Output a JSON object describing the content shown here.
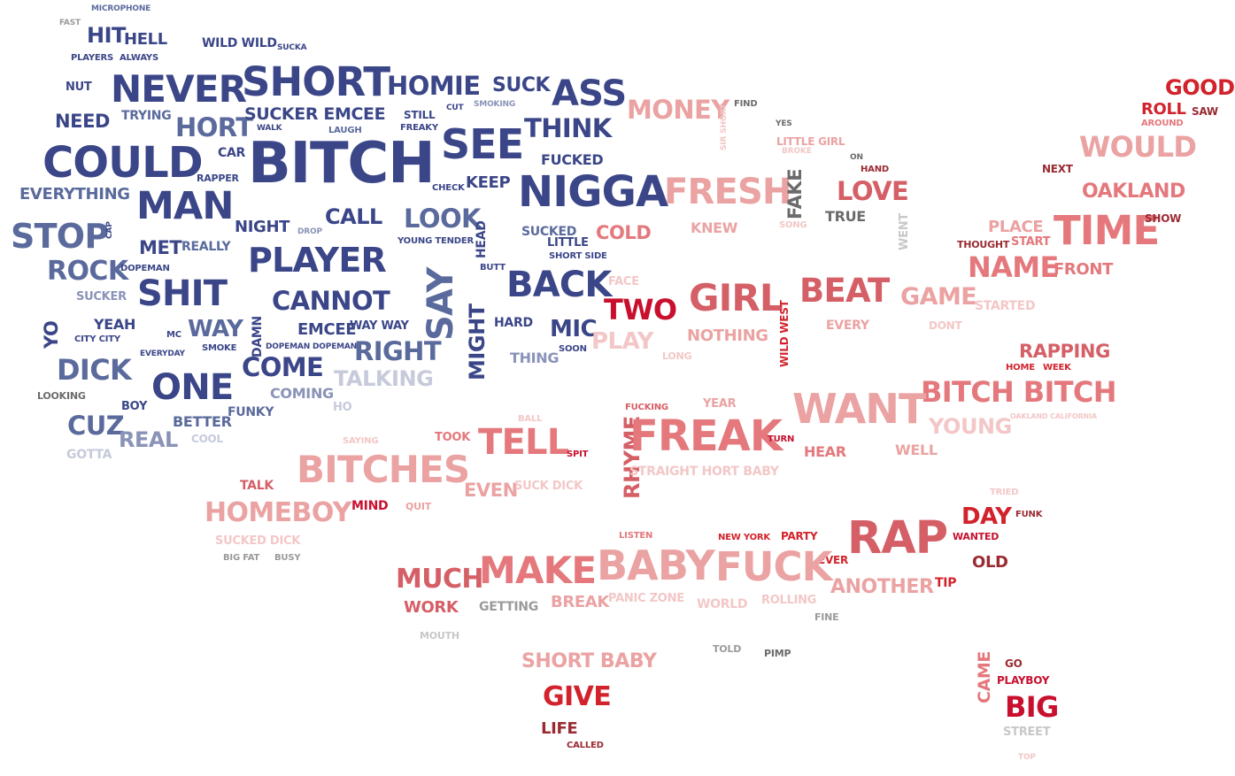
{
  "palette": {
    "navy": "#3b4688",
    "slate": "#5a6a9c",
    "blue_gray": "#8a93b8",
    "pale_blue": "#c6cadb",
    "gray": "#9a9a9a",
    "light_gray": "#c8c8c8",
    "dark_gray": "#6b6b6b",
    "pale_pink": "#f3c7c7",
    "pink": "#eba2a2",
    "salmon": "#e4787c",
    "rose": "#d55f66",
    "red": "#d2232c",
    "crimson": "#c8102e",
    "maroon": "#9a2b33"
  },
  "words": [
    {
      "text": "MICROPHONE",
      "color": "slate",
      "size": 11,
      "weight": 1
    },
    {
      "text": "FAST",
      "color": "gray",
      "size": 11,
      "weight": 1
    },
    {
      "text": "HIT",
      "color": "navy",
      "size": 30,
      "weight": 3
    },
    {
      "text": "HELL",
      "color": "navy",
      "size": 22,
      "weight": 2
    },
    {
      "text": "PLAYERS",
      "color": "navy",
      "size": 13,
      "weight": 1
    },
    {
      "text": "ALWAYS",
      "color": "navy",
      "size": 13,
      "weight": 1
    },
    {
      "text": "WILD WILD",
      "color": "navy",
      "size": 18,
      "weight": 2
    },
    {
      "text": "SUCKA",
      "color": "navy",
      "size": 11,
      "weight": 1
    },
    {
      "text": "NUT",
      "color": "navy",
      "size": 16,
      "weight": 1
    },
    {
      "text": "NEVER",
      "color": "navy",
      "size": 52,
      "weight": 5
    },
    {
      "text": "SHORT",
      "color": "navy",
      "size": 56,
      "weight": 5
    },
    {
      "text": "HOMIE",
      "color": "navy",
      "size": 36,
      "weight": 3
    },
    {
      "text": "SUCK",
      "color": "navy",
      "size": 28,
      "weight": 3
    },
    {
      "text": "ASS",
      "color": "navy",
      "size": 50,
      "weight": 5
    },
    {
      "text": "CUT",
      "color": "navy",
      "size": 11,
      "weight": 1
    },
    {
      "text": "SMOKING",
      "color": "blue_gray",
      "size": 11,
      "weight": 1
    },
    {
      "text": "NEED",
      "color": "navy",
      "size": 26,
      "weight": 2
    },
    {
      "text": "TRYING",
      "color": "slate",
      "size": 17,
      "weight": 1
    },
    {
      "text": "HORT",
      "color": "slate",
      "size": 36,
      "weight": 3
    },
    {
      "text": "SUCKER EMCEE",
      "color": "navy",
      "size": 24,
      "weight": 2
    },
    {
      "text": "WALK",
      "color": "navy",
      "size": 11,
      "weight": 1
    },
    {
      "text": "LAUGH",
      "color": "slate",
      "size": 12,
      "weight": 1
    },
    {
      "text": "STILL",
      "color": "navy",
      "size": 15,
      "weight": 1
    },
    {
      "text": "FREAKY",
      "color": "navy",
      "size": 12,
      "weight": 1
    },
    {
      "text": "THINK",
      "color": "navy",
      "size": 36,
      "weight": 3
    },
    {
      "text": "SEE",
      "color": "navy",
      "size": 58,
      "weight": 5
    },
    {
      "text": "MONEY",
      "color": "pink",
      "size": 36,
      "weight": 3
    },
    {
      "text": "FIND",
      "color": "dark_gray",
      "size": 13,
      "weight": 1
    },
    {
      "text": "SIR SHORT",
      "color": "pale_pink",
      "size": 11,
      "weight": 1
    },
    {
      "text": "GOOD",
      "color": "red",
      "size": 30,
      "weight": 3
    },
    {
      "text": "ROLL",
      "color": "red",
      "size": 22,
      "weight": 2
    },
    {
      "text": "SAW",
      "color": "maroon",
      "size": 15,
      "weight": 1
    },
    {
      "text": "AROUND",
      "color": "salmon",
      "size": 13,
      "weight": 1
    },
    {
      "text": "COULD",
      "color": "navy",
      "size": 60,
      "weight": 6
    },
    {
      "text": "CAR",
      "color": "navy",
      "size": 18,
      "weight": 1
    },
    {
      "text": "BITCH",
      "color": "navy",
      "size": 80,
      "weight": 8
    },
    {
      "text": "FUCKED",
      "color": "navy",
      "size": 20,
      "weight": 2
    },
    {
      "text": "YES",
      "color": "dark_gray",
      "size": 11,
      "weight": 1
    },
    {
      "text": "LITTLE GIRL",
      "color": "pink",
      "size": 15,
      "weight": 1
    },
    {
      "text": "BROKE",
      "color": "pale_pink",
      "size": 11,
      "weight": 1
    },
    {
      "text": "ON",
      "color": "dark_gray",
      "size": 11,
      "weight": 1
    },
    {
      "text": "HAND",
      "color": "maroon",
      "size": 12,
      "weight": 1
    },
    {
      "text": "NEXT",
      "color": "maroon",
      "size": 15,
      "weight": 1
    },
    {
      "text": "WOULD",
      "color": "pink",
      "size": 40,
      "weight": 4
    },
    {
      "text": "EVERYTHING",
      "color": "slate",
      "size": 22,
      "weight": 2
    },
    {
      "text": "RAPPER",
      "color": "navy",
      "size": 14,
      "weight": 1
    },
    {
      "text": "CHECK",
      "color": "navy",
      "size": 12,
      "weight": 1
    },
    {
      "text": "KEEP",
      "color": "navy",
      "size": 22,
      "weight": 2
    },
    {
      "text": "NIGGA",
      "color": "navy",
      "size": 60,
      "weight": 6
    },
    {
      "text": "FRESH",
      "color": "pink",
      "size": 50,
      "weight": 5
    },
    {
      "text": "FAKE",
      "color": "dark_gray",
      "size": 26,
      "weight": 2
    },
    {
      "text": "LOVE",
      "color": "rose",
      "size": 36,
      "weight": 3
    },
    {
      "text": "OAKLAND",
      "color": "salmon",
      "size": 28,
      "weight": 3
    },
    {
      "text": "MAN",
      "color": "navy",
      "size": 54,
      "weight": 5
    },
    {
      "text": "STOP",
      "color": "slate",
      "size": 48,
      "weight": 4
    },
    {
      "text": "CAP",
      "color": "navy",
      "size": 11,
      "weight": 1
    },
    {
      "text": "NIGHT",
      "color": "navy",
      "size": 22,
      "weight": 2
    },
    {
      "text": "DROP",
      "color": "blue_gray",
      "size": 11,
      "weight": 1
    },
    {
      "text": "CALL",
      "color": "navy",
      "size": 30,
      "weight": 3
    },
    {
      "text": "LOOK",
      "color": "slate",
      "size": 36,
      "weight": 3
    },
    {
      "text": "YOUNG TENDER",
      "color": "navy",
      "size": 12,
      "weight": 1
    },
    {
      "text": "HEAD",
      "color": "navy",
      "size": 18,
      "weight": 1
    },
    {
      "text": "SUCKED",
      "color": "slate",
      "size": 18,
      "weight": 1
    },
    {
      "text": "LITTLE",
      "color": "navy",
      "size": 16,
      "weight": 1
    },
    {
      "text": "SHORT SIDE",
      "color": "navy",
      "size": 12,
      "weight": 1
    },
    {
      "text": "COLD",
      "color": "salmon",
      "size": 26,
      "weight": 2
    },
    {
      "text": "KNEW",
      "color": "pink",
      "size": 20,
      "weight": 2
    },
    {
      "text": "SONG",
      "color": "pale_pink",
      "size": 13,
      "weight": 1
    },
    {
      "text": "TRUE",
      "color": "dark_gray",
      "size": 20,
      "weight": 2
    },
    {
      "text": "WENT",
      "color": "light_gray",
      "size": 16,
      "weight": 1
    },
    {
      "text": "PLACE",
      "color": "pink",
      "size": 22,
      "weight": 2
    },
    {
      "text": "THOUGHT",
      "color": "maroon",
      "size": 14,
      "weight": 1
    },
    {
      "text": "START",
      "color": "salmon",
      "size": 16,
      "weight": 1
    },
    {
      "text": "TIME",
      "color": "salmon",
      "size": 56,
      "weight": 5
    },
    {
      "text": "SHOW",
      "color": "maroon",
      "size": 15,
      "weight": 1
    },
    {
      "text": "MET",
      "color": "navy",
      "size": 26,
      "weight": 2
    },
    {
      "text": "REALLY",
      "color": "slate",
      "size": 18,
      "weight": 1
    },
    {
      "text": "PLAYER",
      "color": "navy",
      "size": 48,
      "weight": 5
    },
    {
      "text": "SAY",
      "color": "slate",
      "size": 50,
      "weight": 5
    },
    {
      "text": "ROCK",
      "color": "slate",
      "size": 38,
      "weight": 3
    },
    {
      "text": "DOPEMAN",
      "color": "navy",
      "size": 12,
      "weight": 1
    },
    {
      "text": "BUTT",
      "color": "navy",
      "size": 12,
      "weight": 1
    },
    {
      "text": "BACK",
      "color": "navy",
      "size": 50,
      "weight": 5
    },
    {
      "text": "FACE",
      "color": "pale_pink",
      "size": 16,
      "weight": 1
    },
    {
      "text": "NAME",
      "color": "salmon",
      "size": 40,
      "weight": 4
    },
    {
      "text": "FRONT",
      "color": "salmon",
      "size": 22,
      "weight": 2
    },
    {
      "text": "SUCKER",
      "color": "blue_gray",
      "size": 16,
      "weight": 1
    },
    {
      "text": "SHIT",
      "color": "navy",
      "size": 50,
      "weight": 5
    },
    {
      "text": "CANNOT",
      "color": "navy",
      "size": 36,
      "weight": 3
    },
    {
      "text": "MIGHT",
      "color": "navy",
      "size": 30,
      "weight": 3
    },
    {
      "text": "TWO",
      "color": "crimson",
      "size": 40,
      "weight": 4
    },
    {
      "text": "GIRL",
      "color": "rose",
      "size": 52,
      "weight": 5
    },
    {
      "text": "WILD WEST",
      "color": "red",
      "size": 15,
      "weight": 1
    },
    {
      "text": "BEAT",
      "color": "rose",
      "size": 46,
      "weight": 4
    },
    {
      "text": "GAME",
      "color": "pink",
      "size": 34,
      "weight": 3
    },
    {
      "text": "STARTED",
      "color": "pale_pink",
      "size": 18,
      "weight": 1
    },
    {
      "text": "YO",
      "color": "navy",
      "size": 26,
      "weight": 2
    },
    {
      "text": "YEAH",
      "color": "navy",
      "size": 20,
      "weight": 2
    },
    {
      "text": "CITY CITY",
      "color": "navy",
      "size": 12,
      "weight": 1
    },
    {
      "text": "MC",
      "color": "navy",
      "size": 12,
      "weight": 1
    },
    {
      "text": "WAY",
      "color": "slate",
      "size": 32,
      "weight": 3
    },
    {
      "text": "DAMN",
      "color": "navy",
      "size": 18,
      "weight": 1
    },
    {
      "text": "EMCEE",
      "color": "navy",
      "size": 22,
      "weight": 2
    },
    {
      "text": "WAY WAY",
      "color": "navy",
      "size": 16,
      "weight": 1
    },
    {
      "text": "HARD",
      "color": "navy",
      "size": 18,
      "weight": 1
    },
    {
      "text": "MIC",
      "color": "navy",
      "size": 32,
      "weight": 3
    },
    {
      "text": "PLAY",
      "color": "pale_pink",
      "size": 32,
      "weight": 3
    },
    {
      "text": "NOTHING",
      "color": "pink",
      "size": 22,
      "weight": 2
    },
    {
      "text": "EVERY",
      "color": "pink",
      "size": 18,
      "weight": 1
    },
    {
      "text": "DONT",
      "color": "pale_pink",
      "size": 15,
      "weight": 1
    },
    {
      "text": "RAPPING",
      "color": "rose",
      "size": 26,
      "weight": 2
    },
    {
      "text": "EVERYDAY",
      "color": "navy",
      "size": 11,
      "weight": 1
    },
    {
      "text": "SMOKE",
      "color": "navy",
      "size": 12,
      "weight": 1
    },
    {
      "text": "DOPEMAN DOPEMAN",
      "color": "navy",
      "size": 11,
      "weight": 1
    },
    {
      "text": "RIGHT",
      "color": "slate",
      "size": 36,
      "weight": 3
    },
    {
      "text": "THING",
      "color": "blue_gray",
      "size": 20,
      "weight": 2
    },
    {
      "text": "SOON",
      "color": "navy",
      "size": 12,
      "weight": 1
    },
    {
      "text": "LONG",
      "color": "pale_pink",
      "size": 14,
      "weight": 1
    },
    {
      "text": "HOME",
      "color": "red",
      "size": 13,
      "weight": 1
    },
    {
      "text": "WEEK",
      "color": "red",
      "size": 13,
      "weight": 1
    },
    {
      "text": "DICK",
      "color": "slate",
      "size": 40,
      "weight": 4
    },
    {
      "text": "COME",
      "color": "navy",
      "size": 36,
      "weight": 3
    },
    {
      "text": "TALKING",
      "color": "pale_blue",
      "size": 30,
      "weight": 3
    },
    {
      "text": "ONE",
      "color": "navy",
      "size": 50,
      "weight": 5
    },
    {
      "text": "COMING",
      "color": "blue_gray",
      "size": 20,
      "weight": 2
    },
    {
      "text": "BITCH BITCH",
      "color": "salmon",
      "size": 40,
      "weight": 4
    },
    {
      "text": "LOOKING",
      "color": "dark_gray",
      "size": 14,
      "weight": 1
    },
    {
      "text": "BOY",
      "color": "navy",
      "size": 16,
      "weight": 1
    },
    {
      "text": "HO",
      "color": "pale_blue",
      "size": 16,
      "weight": 1
    },
    {
      "text": "FUNKY",
      "color": "slate",
      "size": 18,
      "weight": 1
    },
    {
      "text": "FUCKING",
      "color": "rose",
      "size": 12,
      "weight": 1
    },
    {
      "text": "YEAR",
      "color": "pink",
      "size": 16,
      "weight": 1
    },
    {
      "text": "WANT",
      "color": "pink",
      "size": 58,
      "weight": 6
    },
    {
      "text": "OAKLAND CALIFORNIA",
      "color": "pale_pink",
      "size": 10,
      "weight": 1
    },
    {
      "text": "CUZ",
      "color": "slate",
      "size": 36,
      "weight": 3
    },
    {
      "text": "BETTER",
      "color": "slate",
      "size": 20,
      "weight": 2
    },
    {
      "text": "BALL",
      "color": "pale_pink",
      "size": 12,
      "weight": 1
    },
    {
      "text": "YOUNG",
      "color": "pale_pink",
      "size": 30,
      "weight": 3
    },
    {
      "text": "REAL",
      "color": "blue_gray",
      "size": 30,
      "weight": 3
    },
    {
      "text": "COOL",
      "color": "pale_blue",
      "size": 15,
      "weight": 1
    },
    {
      "text": "GOTTA",
      "color": "pale_blue",
      "size": 18,
      "weight": 1
    },
    {
      "text": "SAYING",
      "color": "pale_pink",
      "size": 12,
      "weight": 1
    },
    {
      "text": "TOOK",
      "color": "salmon",
      "size": 16,
      "weight": 1
    },
    {
      "text": "TELL",
      "color": "salmon",
      "size": 50,
      "weight": 5
    },
    {
      "text": "SPIT",
      "color": "crimson",
      "size": 12,
      "weight": 1
    },
    {
      "text": "RHYME",
      "color": "rose",
      "size": 30,
      "weight": 3
    },
    {
      "text": "FREAK",
      "color": "salmon",
      "size": 60,
      "weight": 6
    },
    {
      "text": "TURN",
      "color": "crimson",
      "size": 13,
      "weight": 1
    },
    {
      "text": "HEAR",
      "color": "salmon",
      "size": 20,
      "weight": 2
    },
    {
      "text": "WELL",
      "color": "pink",
      "size": 20,
      "weight": 2
    },
    {
      "text": "BITCHES",
      "color": "pink",
      "size": 52,
      "weight": 5
    },
    {
      "text": "STRAIGHT HORT BABY",
      "color": "pale_pink",
      "size": 18,
      "weight": 1
    },
    {
      "text": "TALK",
      "color": "rose",
      "size": 18,
      "weight": 1
    },
    {
      "text": "EVEN",
      "color": "pink",
      "size": 26,
      "weight": 2
    },
    {
      "text": "SUCK DICK",
      "color": "pale_pink",
      "size": 16,
      "weight": 1
    },
    {
      "text": "TRIED",
      "color": "pale_pink",
      "size": 13,
      "weight": 1
    },
    {
      "text": "MIND",
      "color": "crimson",
      "size": 17,
      "weight": 1
    },
    {
      "text": "QUIT",
      "color": "pink",
      "size": 14,
      "weight": 1
    },
    {
      "text": "HOMEBOY",
      "color": "pink",
      "size": 38,
      "weight": 4
    },
    {
      "text": "DAY",
      "color": "red",
      "size": 32,
      "weight": 3
    },
    {
      "text": "FUNK",
      "color": "maroon",
      "size": 12,
      "weight": 1
    },
    {
      "text": "WANTED",
      "color": "crimson",
      "size": 14,
      "weight": 1
    },
    {
      "text": "SUCKED DICK",
      "color": "pale_pink",
      "size": 16,
      "weight": 1
    },
    {
      "text": "LISTEN",
      "color": "salmon",
      "size": 12,
      "weight": 1
    },
    {
      "text": "NEW YORK",
      "color": "red",
      "size": 13,
      "weight": 1
    },
    {
      "text": "PARTY",
      "color": "red",
      "size": 15,
      "weight": 1
    },
    {
      "text": "RAP",
      "color": "rose",
      "size": 64,
      "weight": 6
    },
    {
      "text": "BIG FAT",
      "color": "gray",
      "size": 12,
      "weight": 1
    },
    {
      "text": "BUSY",
      "color": "gray",
      "size": 12,
      "weight": 1
    },
    {
      "text": "EVER",
      "color": "red",
      "size": 15,
      "weight": 1
    },
    {
      "text": "OLD",
      "color": "maroon",
      "size": 22,
      "weight": 2
    },
    {
      "text": "MUCH",
      "color": "rose",
      "size": 38,
      "weight": 4
    },
    {
      "text": "MAKE",
      "color": "salmon",
      "size": 52,
      "weight": 5
    },
    {
      "text": "BABY",
      "color": "pink",
      "size": 58,
      "weight": 6
    },
    {
      "text": "FUCK",
      "color": "pink",
      "size": 56,
      "weight": 5
    },
    {
      "text": "TIP",
      "color": "red",
      "size": 18,
      "weight": 1
    },
    {
      "text": "ANOTHER",
      "color": "pink",
      "size": 28,
      "weight": 3
    },
    {
      "text": "WORK",
      "color": "rose",
      "size": 22,
      "weight": 2
    },
    {
      "text": "GETTING",
      "color": "gray",
      "size": 18,
      "weight": 1
    },
    {
      "text": "BREAK",
      "color": "pink",
      "size": 22,
      "weight": 2
    },
    {
      "text": "PANIC ZONE",
      "color": "pale_pink",
      "size": 16,
      "weight": 1
    },
    {
      "text": "WORLD",
      "color": "pale_pink",
      "size": 18,
      "weight": 1
    },
    {
      "text": "ROLLING",
      "color": "pale_pink",
      "size": 16,
      "weight": 1
    },
    {
      "text": "FINE",
      "color": "gray",
      "size": 14,
      "weight": 1
    },
    {
      "text": "MOUTH",
      "color": "light_gray",
      "size": 14,
      "weight": 1
    },
    {
      "text": "TOLD",
      "color": "gray",
      "size": 14,
      "weight": 1
    },
    {
      "text": "PIMP",
      "color": "dark_gray",
      "size": 14,
      "weight": 1
    },
    {
      "text": "SHORT BABY",
      "color": "pink",
      "size": 28,
      "weight": 3
    },
    {
      "text": "CAME",
      "color": "salmon",
      "size": 24,
      "weight": 2
    },
    {
      "text": "GO",
      "color": "maroon",
      "size": 15,
      "weight": 1
    },
    {
      "text": "PLAYBOY",
      "color": "crimson",
      "size": 15,
      "weight": 1
    },
    {
      "text": "GIVE",
      "color": "red",
      "size": 38,
      "weight": 4
    },
    {
      "text": "BIG",
      "color": "crimson",
      "size": 40,
      "weight": 4
    },
    {
      "text": "LIFE",
      "color": "maroon",
      "size": 22,
      "weight": 2
    },
    {
      "text": "STREET",
      "color": "light_gray",
      "size": 16,
      "weight": 1
    },
    {
      "text": "CALLED",
      "color": "maroon",
      "size": 13,
      "weight": 1
    },
    {
      "text": "TOP",
      "color": "pale_pink",
      "size": 11,
      "weight": 1
    }
  ]
}
